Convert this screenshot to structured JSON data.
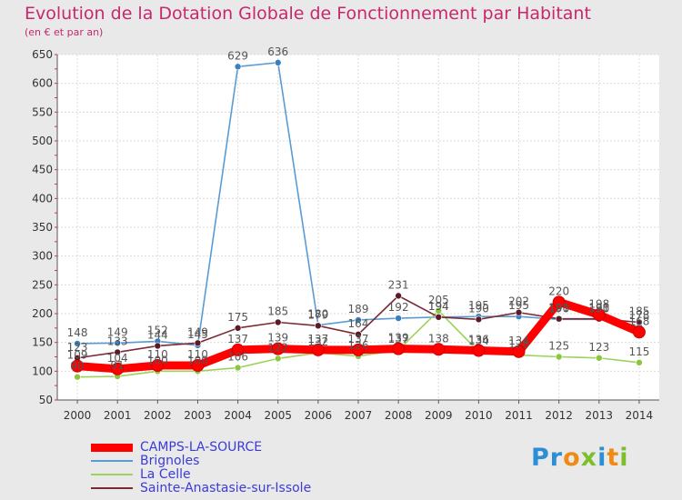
{
  "header": {
    "title": "Evolution de la Dotation Globale de Fonctionnement par Habitant",
    "subtitle": "(en € et par an)"
  },
  "logo": {
    "text": "Proxiti"
  },
  "chart_data": {
    "type": "line",
    "title": "Evolution de la Dotation Globale de Fonctionnement par Habitant",
    "subtitle": "(en € et par an)",
    "xlabel": "",
    "ylabel": "",
    "ylim": [
      50,
      650
    ],
    "yticks": [
      50,
      100,
      150,
      200,
      250,
      300,
      350,
      400,
      450,
      500,
      550,
      600,
      650
    ],
    "grid": true,
    "legend_position": "bottom-left",
    "categories": [
      "2000",
      "2001",
      "2002",
      "2003",
      "2004",
      "2005",
      "2006",
      "2007",
      "2008",
      "2009",
      "2010",
      "2011",
      "2012",
      "2013",
      "2014"
    ],
    "series": [
      {
        "name": "Brignoles",
        "color": "#5b9bd5",
        "marker": "#3a7fc0",
        "values": [
          148,
          149,
          152,
          145,
          629,
          636,
          180,
          189,
          192,
          194,
          195,
          195,
          190,
          190,
          178
        ]
      },
      {
        "name": "La Celle",
        "color": "#9ed25a",
        "marker": "#8cc63f",
        "values": [
          90,
          91,
          100,
          100,
          106,
          122,
          132,
          126,
          137,
          205,
          134,
          128,
          125,
          123,
          115
        ]
      },
      {
        "name": "Sainte-Anastasie-sur-Issole",
        "color": "#7a2a36",
        "marker": "#5a1a26",
        "values": [
          123,
          133,
          144,
          149,
          175,
          185,
          179,
          164,
          231,
          194,
          190,
          202,
          191,
          191,
          185
        ]
      },
      {
        "name": "CAMPS-LA-SOURCE",
        "color": "#ff0000",
        "marker": "#ff0000",
        "thick": true,
        "values": [
          109,
          104,
          110,
          110,
          137,
          139,
          137,
          137,
          139,
          138,
          136,
          134,
          220,
          198,
          168
        ]
      }
    ]
  }
}
